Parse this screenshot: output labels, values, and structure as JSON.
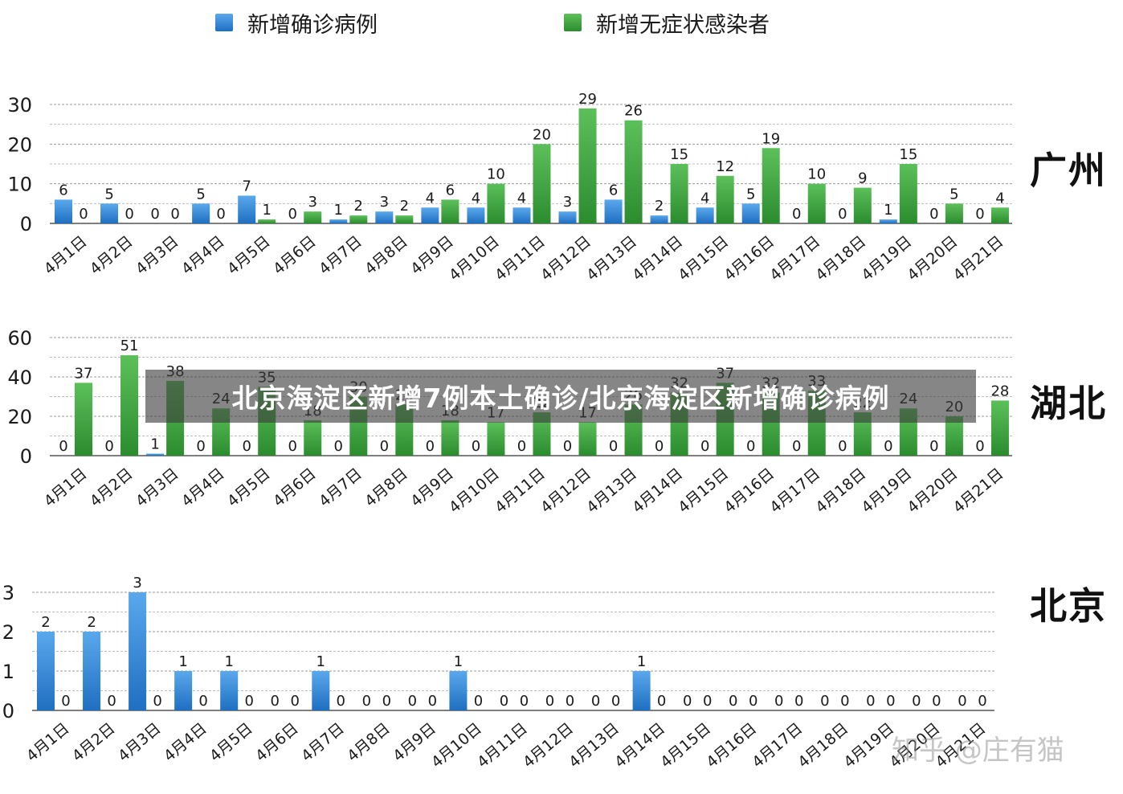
{
  "legend": {
    "confirmed_label": "新增确诊病例",
    "asymptomatic_label": "新增无症状感染者"
  },
  "colors": {
    "confirmed": "#2f86d6",
    "asymptomatic": "#3aa33a"
  },
  "banner": {
    "title": "北京海淀区新增7例本土确诊/北京海淀区新增确诊病例"
  },
  "watermark": {
    "text": "知乎 @庄有猫"
  },
  "chart_data": [
    {
      "type": "bar",
      "region": "广州",
      "categories": [
        "4月1日",
        "4月2日",
        "4月3日",
        "4月4日",
        "4月5日",
        "4月6日",
        "4月7日",
        "4月8日",
        "4月9日",
        "4月10日",
        "4月11日",
        "4月12日",
        "4月13日",
        "4月14日",
        "4月15日",
        "4月16日",
        "4月17日",
        "4月18日",
        "4月19日",
        "4月20日",
        "4月21日"
      ],
      "ylim": [
        0,
        30
      ],
      "yticks": [
        0,
        10,
        20,
        30
      ],
      "grid": true,
      "legend_position": "top",
      "series": [
        {
          "name": "新增确诊病例",
          "values": [
            6,
            5,
            0,
            5,
            7,
            0,
            1,
            3,
            4,
            4,
            4,
            3,
            6,
            2,
            4,
            5,
            0,
            0,
            1,
            0,
            0
          ]
        },
        {
          "name": "新增无症状感染者",
          "values": [
            0,
            0,
            0,
            0,
            1,
            3,
            2,
            2,
            6,
            10,
            20,
            29,
            26,
            15,
            12,
            19,
            10,
            9,
            15,
            5,
            4
          ]
        }
      ]
    },
    {
      "type": "bar",
      "region": "湖北",
      "categories": [
        "4月1日",
        "4月2日",
        "4月3日",
        "4月4日",
        "4月5日",
        "4月6日",
        "4月7日",
        "4月8日",
        "4月9日",
        "4月10日",
        "4月11日",
        "4月12日",
        "4月13日",
        "4月14日",
        "4月15日",
        "4月16日",
        "4月17日",
        "4月18日",
        "4月19日",
        "4月20日",
        "4月21日"
      ],
      "ylim": [
        0,
        60
      ],
      "yticks": [
        0,
        20,
        40,
        60
      ],
      "grid": true,
      "series": [
        {
          "name": "新增确诊病例",
          "values": [
            0,
            0,
            1,
            0,
            0,
            0,
            0,
            0,
            0,
            0,
            0,
            0,
            0,
            0,
            0,
            0,
            0,
            0,
            0,
            0,
            0
          ]
        },
        {
          "name": "新增无症状感染者",
          "values": [
            37,
            51,
            38,
            24,
            35,
            18,
            30,
            26,
            18,
            17,
            22,
            17,
            26,
            32,
            37,
            32,
            33,
            22,
            24,
            20,
            28
          ]
        }
      ]
    },
    {
      "type": "bar",
      "region": "北京",
      "categories": [
        "4月1日",
        "4月2日",
        "4月3日",
        "4月4日",
        "4月5日",
        "4月6日",
        "4月7日",
        "4月8日",
        "4月9日",
        "4月10日",
        "4月11日",
        "4月12日",
        "4月13日",
        "4月14日",
        "4月15日",
        "4月16日",
        "4月17日",
        "4月18日",
        "4月19日",
        "4月20日",
        "4月21日"
      ],
      "ylim": [
        0,
        3
      ],
      "yticks": [
        0,
        1,
        2,
        3
      ],
      "grid": true,
      "series": [
        {
          "name": "新增确诊病例",
          "values": [
            2,
            2,
            3,
            1,
            1,
            0,
            1,
            0,
            0,
            1,
            0,
            0,
            0,
            1,
            0,
            0,
            0,
            0,
            0,
            0,
            0
          ]
        },
        {
          "name": "新增无症状感染者",
          "values": [
            0,
            0,
            0,
            0,
            0,
            0,
            0,
            0,
            0,
            0,
            0,
            0,
            0,
            0,
            0,
            0,
            0,
            0,
            0,
            0,
            0
          ]
        }
      ]
    }
  ]
}
